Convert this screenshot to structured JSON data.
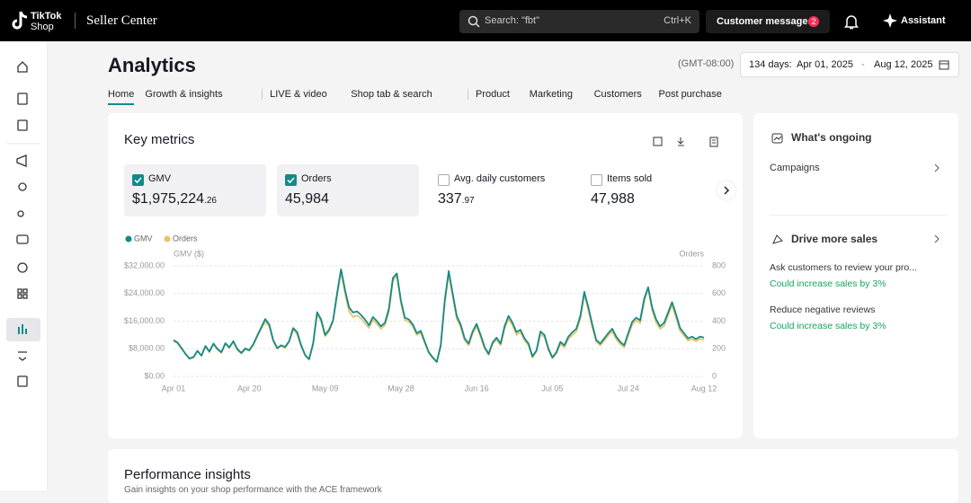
{
  "header": {
    "logo_top": "TikTok",
    "logo_bottom": "Shop",
    "product": "Seller Center",
    "search": "Search: \"fbt\"",
    "shortcut": "Ctrl+K",
    "messages": "Customer messages",
    "messages_badge": "2",
    "assistant": "Assistant"
  },
  "page": {
    "title": "Analytics",
    "timezone": "(GMT-08:00)",
    "range_days": "134 days:",
    "range_start": "Apr 01, 2025",
    "range_sep": "-",
    "range_end": "Aug 12, 2025",
    "tabs": [
      [
        "Home",
        "Growth & insights"
      ],
      [
        "LIVE & video",
        "Shop tab & search"
      ],
      [
        "Product",
        "Marketing",
        "Customers",
        "Post purchase"
      ]
    ]
  },
  "key_metrics": {
    "title": "Key metrics",
    "metrics": [
      {
        "label": "GMV",
        "value": "$1,975,224",
        "decimal": ".26",
        "checked": true
      },
      {
        "label": "Orders",
        "value": "45,984",
        "decimal": "",
        "checked": true
      },
      {
        "label": "Avg. daily customers",
        "value": "337",
        "decimal": ".97",
        "checked": false
      },
      {
        "label": "Items sold",
        "value": "47,988",
        "decimal": "",
        "checked": false
      }
    ]
  },
  "chart_data": {
    "type": "line",
    "y_label": "GMV ($)",
    "y2_label": "Orders",
    "grid": true,
    "categories": [
      "Apr 01",
      null,
      null,
      null,
      null,
      null,
      null,
      null,
      null,
      null,
      null,
      null,
      null,
      null,
      null,
      null,
      null,
      null,
      null,
      "Apr 20",
      null,
      null,
      null,
      null,
      null,
      null,
      null,
      null,
      null,
      null,
      null,
      null,
      null,
      null,
      null,
      null,
      null,
      null,
      "May 09",
      null,
      null,
      null,
      null,
      null,
      null,
      null,
      null,
      null,
      null,
      null,
      null,
      null,
      null,
      null,
      null,
      null,
      null,
      "May 28",
      null,
      null,
      null,
      null,
      null,
      null,
      null,
      null,
      null,
      null,
      null,
      null,
      null,
      null,
      null,
      null,
      null,
      null,
      "Jun 16",
      null,
      null,
      null,
      null,
      null,
      null,
      null,
      null,
      null,
      null,
      null,
      null,
      null,
      null,
      null,
      null,
      null,
      null,
      "Jul 05",
      null,
      null,
      null,
      null,
      null,
      null,
      null,
      null,
      null,
      null,
      null,
      null,
      null,
      null,
      null,
      null,
      null,
      null,
      "Jul 24",
      null,
      null,
      null,
      null,
      null,
      null,
      null,
      null,
      null,
      null,
      null,
      null,
      null,
      null,
      null,
      null,
      null,
      null,
      "Aug 12"
    ],
    "ylim": [
      0,
      32000
    ],
    "yticks": [
      {
        "value": 0,
        "label": "$0.00"
      },
      {
        "value": 8000,
        "label": "$8,000.00"
      },
      {
        "value": 16000,
        "label": "$16,000.00"
      },
      {
        "value": 24000,
        "label": "$24,000.00"
      },
      {
        "value": 32000,
        "label": "$32,000.00"
      }
    ],
    "y2lim": [
      0,
      800
    ],
    "y2ticks": [
      0,
      200,
      400,
      600,
      800
    ],
    "series": [
      {
        "name": "GMV",
        "color": "#138a8a",
        "values": [
          10500,
          9800,
          8200,
          6500,
          5200,
          5600,
          7400,
          6000,
          8800,
          7200,
          9500,
          8000,
          7000,
          9600,
          8400,
          10200,
          7900,
          6800,
          8100,
          7600,
          9300,
          11800,
          14200,
          16600,
          15000,
          10500,
          8200,
          9000,
          8500,
          10200,
          14000,
          12800,
          9000,
          6200,
          5000,
          9600,
          18600,
          16500,
          12000,
          13500,
          16200,
          24000,
          31000,
          25000,
          20000,
          18500,
          18800,
          17800,
          16500,
          14800,
          17200,
          16000,
          14500,
          15500,
          19500,
          28500,
          29800,
          22000,
          17000,
          16500,
          15000,
          12500,
          13200,
          10000,
          7000,
          5500,
          4200,
          9000,
          22000,
          30500,
          24000,
          17500,
          15000,
          11000,
          9500,
          13000,
          15200,
          12000,
          8500,
          6500,
          9800,
          11200,
          9500,
          14500,
          17500,
          15500,
          12800,
          13500,
          11000,
          9500,
          5800,
          7500,
          13000,
          12000,
          8000,
          5500,
          7000,
          10000,
          9000,
          11500,
          12800,
          13800,
          17500,
          24500,
          20000,
          15000,
          10500,
          9500,
          11000,
          12500,
          13800,
          11500,
          10000,
          9000,
          12500,
          15800,
          17000,
          16200,
          22500,
          25800,
          20000,
          16500,
          14500,
          15500,
          18500,
          21500,
          18000,
          14000,
          12500,
          11000,
          11500,
          10800,
          11500,
          11200
        ]
      },
      {
        "name": "Orders",
        "color": "#e8c46a",
        "axis": "y2",
        "values": [
          255,
          240,
          200,
          165,
          125,
          135,
          180,
          150,
          215,
          175,
          230,
          195,
          170,
          235,
          205,
          250,
          190,
          165,
          195,
          185,
          225,
          290,
          345,
          395,
          360,
          255,
          200,
          220,
          205,
          250,
          340,
          305,
          215,
          150,
          120,
          230,
          450,
          400,
          290,
          325,
          395,
          580,
          760,
          600,
          470,
          430,
          440,
          420,
          385,
          350,
          410,
          380,
          345,
          370,
          465,
          690,
          730,
          530,
          410,
          395,
          360,
          300,
          315,
          240,
          170,
          130,
          105,
          215,
          530,
          740,
          580,
          415,
          355,
          260,
          225,
          310,
          360,
          285,
          200,
          155,
          235,
          265,
          225,
          345,
          415,
          370,
          300,
          320,
          260,
          225,
          135,
          180,
          305,
          285,
          190,
          130,
          165,
          235,
          210,
          270,
          300,
          325,
          415,
          590,
          480,
          355,
          250,
          225,
          260,
          295,
          325,
          270,
          235,
          210,
          295,
          375,
          405,
          385,
          535,
          640,
          480,
          390,
          345,
          365,
          440,
          515,
          425,
          330,
          295,
          260,
          270,
          255,
          270,
          265
        ]
      }
    ]
  },
  "side_panel": {
    "ongoing_title": "What's ongoing",
    "ongoing_item": "Campaigns",
    "sales_title": "Drive more sales",
    "items": [
      {
        "title": "Ask customers to review your pro...",
        "note": "Could increase sales by 3%"
      },
      {
        "title": "Reduce negative reviews",
        "note": "Could increase sales by 3%"
      }
    ]
  },
  "insights": {
    "title": "Performance insights",
    "subtitle": "Gain insights on your shop performance with the ACE framework"
  }
}
